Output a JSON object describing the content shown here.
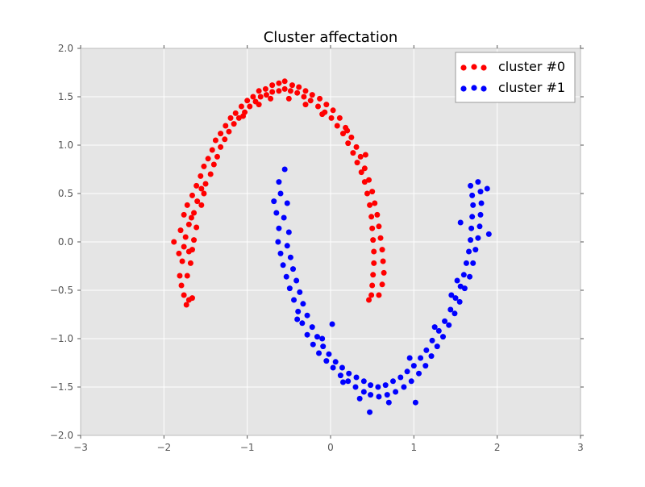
{
  "chart_data": {
    "type": "scatter",
    "title": "Cluster affectation",
    "xlabel": "",
    "ylabel": "",
    "xlim": [
      -3,
      3
    ],
    "ylim": [
      -2.0,
      2.0
    ],
    "x_ticks": [
      "−3",
      "−2",
      "−1",
      "0",
      "1",
      "2",
      "3"
    ],
    "x_tick_values": [
      -3,
      -2,
      -1,
      0,
      1,
      2,
      3
    ],
    "y_ticks": [
      "−2.0",
      "−1.5",
      "−1.0",
      "−0.5",
      "0.0",
      "0.5",
      "1.0",
      "1.5",
      "2.0"
    ],
    "y_tick_values": [
      -2.0,
      -1.5,
      -1.0,
      -0.5,
      0.0,
      0.5,
      1.0,
      1.5,
      2.0
    ],
    "grid": true,
    "legend_position": "top-right",
    "background_color": "#e5e5e5",
    "series": [
      {
        "name": "cluster #0",
        "color": "#ff0000",
        "points": [
          [
            -1.73,
            -0.65
          ],
          [
            -1.76,
            -0.55
          ],
          [
            -1.7,
            -0.6
          ],
          [
            -1.79,
            -0.45
          ],
          [
            -1.66,
            -0.58
          ],
          [
            -1.81,
            -0.35
          ],
          [
            -1.72,
            -0.35
          ],
          [
            -1.78,
            -0.2
          ],
          [
            -1.68,
            -0.22
          ],
          [
            -1.82,
            -0.12
          ],
          [
            -1.76,
            -0.05
          ],
          [
            -1.66,
            -0.08
          ],
          [
            -1.88,
            0.0
          ],
          [
            -1.74,
            0.05
          ],
          [
            -1.64,
            0.02
          ],
          [
            -1.8,
            0.12
          ],
          [
            -1.7,
            0.18
          ],
          [
            -1.61,
            0.15
          ],
          [
            -1.76,
            0.28
          ],
          [
            -1.64,
            0.3
          ],
          [
            -1.72,
            0.38
          ],
          [
            -1.6,
            0.42
          ],
          [
            -1.55,
            0.38
          ],
          [
            -1.66,
            0.48
          ],
          [
            -1.52,
            0.5
          ],
          [
            -1.61,
            0.58
          ],
          [
            -1.5,
            0.6
          ],
          [
            -1.56,
            0.68
          ],
          [
            -1.44,
            0.7
          ],
          [
            -1.52,
            0.78
          ],
          [
            -1.4,
            0.8
          ],
          [
            -1.47,
            0.86
          ],
          [
            -1.36,
            0.88
          ],
          [
            -1.42,
            0.95
          ],
          [
            -1.32,
            0.98
          ],
          [
            -1.38,
            1.05
          ],
          [
            -1.27,
            1.06
          ],
          [
            -1.32,
            1.12
          ],
          [
            -1.22,
            1.14
          ],
          [
            -1.26,
            1.2
          ],
          [
            -1.16,
            1.22
          ],
          [
            -1.2,
            1.28
          ],
          [
            -1.1,
            1.28
          ],
          [
            -1.14,
            1.33
          ],
          [
            -1.03,
            1.34
          ],
          [
            -1.07,
            1.4
          ],
          [
            -0.97,
            1.4
          ],
          [
            -1.0,
            1.46
          ],
          [
            -0.9,
            1.45
          ],
          [
            -0.93,
            1.5
          ],
          [
            -0.84,
            1.5
          ],
          [
            -0.86,
            1.56
          ],
          [
            -0.77,
            1.52
          ],
          [
            -0.78,
            1.58
          ],
          [
            -0.7,
            1.55
          ],
          [
            -0.7,
            1.62
          ],
          [
            -0.62,
            1.56
          ],
          [
            -0.62,
            1.64
          ],
          [
            -0.55,
            1.58
          ],
          [
            -0.55,
            1.66
          ],
          [
            -0.48,
            1.56
          ],
          [
            -0.46,
            1.62
          ],
          [
            -0.4,
            1.54
          ],
          [
            -0.38,
            1.6
          ],
          [
            -0.32,
            1.5
          ],
          [
            -0.3,
            1.56
          ],
          [
            -0.24,
            1.46
          ],
          [
            -0.22,
            1.52
          ],
          [
            -0.15,
            1.4
          ],
          [
            -0.13,
            1.48
          ],
          [
            -0.07,
            1.34
          ],
          [
            -0.05,
            1.42
          ],
          [
            0.01,
            1.28
          ],
          [
            0.03,
            1.36
          ],
          [
            0.08,
            1.2
          ],
          [
            0.11,
            1.28
          ],
          [
            0.15,
            1.12
          ],
          [
            0.18,
            1.18
          ],
          [
            0.21,
            1.02
          ],
          [
            0.25,
            1.08
          ],
          [
            0.27,
            0.92
          ],
          [
            0.31,
            0.98
          ],
          [
            0.32,
            0.82
          ],
          [
            0.36,
            0.88
          ],
          [
            0.37,
            0.72
          ],
          [
            0.41,
            0.76
          ],
          [
            0.41,
            0.62
          ],
          [
            0.46,
            0.64
          ],
          [
            0.44,
            0.5
          ],
          [
            0.5,
            0.52
          ],
          [
            0.47,
            0.38
          ],
          [
            0.53,
            0.4
          ],
          [
            0.49,
            0.26
          ],
          [
            0.56,
            0.28
          ],
          [
            0.5,
            0.14
          ],
          [
            0.58,
            0.16
          ],
          [
            0.51,
            0.02
          ],
          [
            0.6,
            0.04
          ],
          [
            0.52,
            -0.1
          ],
          [
            0.62,
            -0.08
          ],
          [
            0.52,
            -0.22
          ],
          [
            0.63,
            -0.2
          ],
          [
            0.51,
            -0.34
          ],
          [
            0.64,
            -0.32
          ],
          [
            0.5,
            -0.45
          ],
          [
            0.62,
            -0.44
          ],
          [
            0.49,
            -0.55
          ],
          [
            0.58,
            -0.55
          ],
          [
            0.46,
            -0.6
          ],
          [
            -0.72,
            1.48
          ],
          [
            -0.5,
            1.48
          ],
          [
            -0.3,
            1.42
          ],
          [
            -1.05,
            1.3
          ],
          [
            -0.86,
            1.42
          ],
          [
            0.2,
            1.15
          ],
          [
            0.42,
            0.9
          ],
          [
            -1.55,
            0.55
          ],
          [
            -1.7,
            -0.1
          ],
          [
            -1.67,
            0.25
          ],
          [
            -0.1,
            1.32
          ]
        ]
      },
      {
        "name": "cluster #1",
        "color": "#0000ff",
        "points": [
          [
            -0.55,
            0.75
          ],
          [
            -0.68,
            0.42
          ],
          [
            -0.6,
            0.5
          ],
          [
            -0.52,
            0.4
          ],
          [
            -0.65,
            0.3
          ],
          [
            -0.56,
            0.25
          ],
          [
            -0.62,
            0.14
          ],
          [
            -0.5,
            0.1
          ],
          [
            -0.63,
            0.0
          ],
          [
            -0.52,
            -0.04
          ],
          [
            -0.6,
            -0.12
          ],
          [
            -0.48,
            -0.16
          ],
          [
            -0.57,
            -0.24
          ],
          [
            -0.45,
            -0.28
          ],
          [
            -0.53,
            -0.36
          ],
          [
            -0.41,
            -0.4
          ],
          [
            -0.49,
            -0.48
          ],
          [
            -0.37,
            -0.52
          ],
          [
            -0.44,
            -0.6
          ],
          [
            -0.33,
            -0.64
          ],
          [
            -0.39,
            -0.72
          ],
          [
            -0.28,
            -0.76
          ],
          [
            -0.34,
            -0.84
          ],
          [
            -0.22,
            -0.88
          ],
          [
            -0.28,
            -0.96
          ],
          [
            -0.16,
            -0.98
          ],
          [
            -0.21,
            -1.06
          ],
          [
            -0.09,
            -1.08
          ],
          [
            -0.14,
            -1.15
          ],
          [
            -0.02,
            -1.16
          ],
          [
            -0.05,
            -1.23
          ],
          [
            0.06,
            -1.24
          ],
          [
            0.03,
            -1.3
          ],
          [
            0.14,
            -1.3
          ],
          [
            0.12,
            -1.38
          ],
          [
            0.22,
            -1.36
          ],
          [
            0.21,
            -1.44
          ],
          [
            0.31,
            -1.4
          ],
          [
            0.3,
            -1.5
          ],
          [
            0.4,
            -1.44
          ],
          [
            0.4,
            -1.55
          ],
          [
            0.48,
            -1.48
          ],
          [
            0.48,
            -1.58
          ],
          [
            0.47,
            -1.76
          ],
          [
            0.57,
            -1.5
          ],
          [
            0.58,
            -1.6
          ],
          [
            0.66,
            -1.48
          ],
          [
            0.68,
            -1.58
          ],
          [
            0.75,
            -1.44
          ],
          [
            0.78,
            -1.55
          ],
          [
            0.84,
            -1.4
          ],
          [
            0.88,
            -1.5
          ],
          [
            0.92,
            -1.34
          ],
          [
            0.97,
            -1.44
          ],
          [
            1.0,
            -1.28
          ],
          [
            1.02,
            -1.66
          ],
          [
            1.06,
            -1.36
          ],
          [
            1.08,
            -1.2
          ],
          [
            1.14,
            -1.28
          ],
          [
            1.15,
            -1.12
          ],
          [
            1.21,
            -1.18
          ],
          [
            1.22,
            -1.02
          ],
          [
            1.28,
            -1.08
          ],
          [
            1.3,
            -0.92
          ],
          [
            1.35,
            -0.98
          ],
          [
            1.37,
            -0.82
          ],
          [
            1.42,
            -0.86
          ],
          [
            1.44,
            -0.7
          ],
          [
            1.49,
            -0.74
          ],
          [
            1.5,
            -0.58
          ],
          [
            1.55,
            -0.62
          ],
          [
            1.56,
            -0.46
          ],
          [
            1.61,
            -0.48
          ],
          [
            1.6,
            -0.34
          ],
          [
            1.67,
            -0.36
          ],
          [
            1.63,
            -0.22
          ],
          [
            1.71,
            -0.22
          ],
          [
            1.66,
            -0.1
          ],
          [
            1.74,
            -0.08
          ],
          [
            1.68,
            0.02
          ],
          [
            1.77,
            0.04
          ],
          [
            1.69,
            0.14
          ],
          [
            1.79,
            0.16
          ],
          [
            1.7,
            0.26
          ],
          [
            1.8,
            0.28
          ],
          [
            1.71,
            0.38
          ],
          [
            1.81,
            0.4
          ],
          [
            1.7,
            0.48
          ],
          [
            1.8,
            0.52
          ],
          [
            1.68,
            0.58
          ],
          [
            1.77,
            0.62
          ],
          [
            1.88,
            0.55
          ],
          [
            1.9,
            0.08
          ],
          [
            1.56,
            0.2
          ],
          [
            -0.4,
            -0.8
          ],
          [
            -0.1,
            -1.0
          ],
          [
            0.15,
            -1.45
          ],
          [
            0.35,
            -1.62
          ],
          [
            0.7,
            -1.66
          ],
          [
            0.95,
            -1.2
          ],
          [
            1.25,
            -0.88
          ],
          [
            1.52,
            -0.4
          ],
          [
            -0.62,
            0.62
          ],
          [
            0.02,
            -0.85
          ],
          [
            1.45,
            -0.55
          ]
        ]
      }
    ]
  }
}
